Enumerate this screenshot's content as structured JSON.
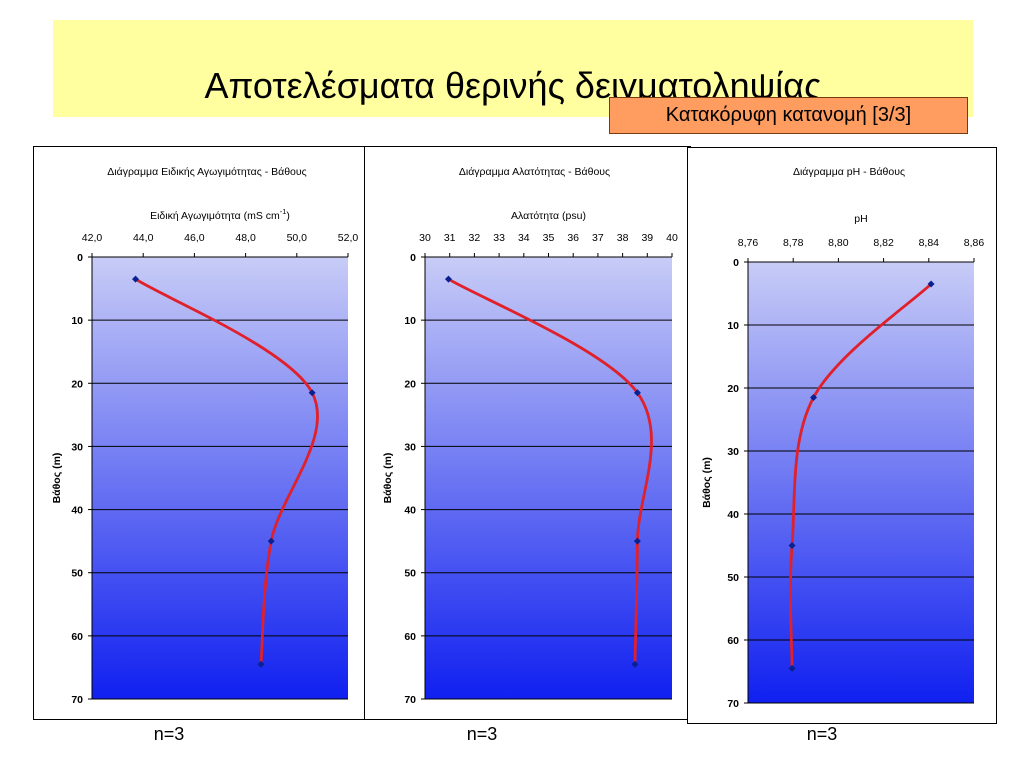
{
  "page": {
    "title": "Αποτελέσματα θερινής δειγματοληψίας",
    "subtitle": "Κατακόρυφη κατανομή [3/3]"
  },
  "colors": {
    "title_bg": "#ffffa0",
    "subtitle_bg": "#ff9c60",
    "plot_top": "#c8ccf6",
    "plot_bottom": "#1020f0",
    "line": "#e0202a",
    "marker": "#0a2090"
  },
  "chart_data": [
    {
      "type": "line",
      "title": "Διάγραμμα Ειδικής Αγωγιμότητας - Βάθους",
      "xlabel": "Ειδική Αγωγιμότητα (mS cm-1)",
      "ylabel": "Βάθος (m)",
      "x_ticks": [
        "42,0",
        "44,0",
        "46,0",
        "48,0",
        "50,0",
        "52,0"
      ],
      "x_tick_values": [
        42,
        44,
        46,
        48,
        50,
        52
      ],
      "y_ticks": [
        "0",
        "10",
        "20",
        "30",
        "40",
        "50",
        "60",
        "70"
      ],
      "y_tick_values": [
        0,
        10,
        20,
        30,
        40,
        50,
        60,
        70
      ],
      "xlim": [
        42,
        52
      ],
      "ylim": [
        0,
        70
      ],
      "x_axis_position": "top",
      "y_inverted": true,
      "grid": "horizontal",
      "points": [
        {
          "x": 43.7,
          "y": 3.5
        },
        {
          "x": 50.6,
          "y": 21.5
        },
        {
          "x": 49.0,
          "y": 45.0
        },
        {
          "x": 48.6,
          "y": 64.5
        }
      ],
      "n_label": "n=3"
    },
    {
      "type": "line",
      "title": "Διάγραμμα Αλατότητας - Βάθους",
      "xlabel": "Αλατότητα (psu)",
      "ylabel": "Βάθος (m)",
      "x_ticks": [
        "30",
        "31",
        "32",
        "33",
        "34",
        "35",
        "36",
        "37",
        "38",
        "39",
        "40"
      ],
      "x_tick_values": [
        30,
        31,
        32,
        33,
        34,
        35,
        36,
        37,
        38,
        39,
        40
      ],
      "y_ticks": [
        "0",
        "10",
        "20",
        "30",
        "40",
        "50",
        "60",
        "70"
      ],
      "y_tick_values": [
        0,
        10,
        20,
        30,
        40,
        50,
        60,
        70
      ],
      "xlim": [
        30,
        40
      ],
      "ylim": [
        0,
        70
      ],
      "x_axis_position": "top",
      "y_inverted": true,
      "grid": "horizontal",
      "points": [
        {
          "x": 30.95,
          "y": 3.5
        },
        {
          "x": 38.6,
          "y": 21.5
        },
        {
          "x": 38.6,
          "y": 45.0
        },
        {
          "x": 38.5,
          "y": 64.5
        }
      ],
      "n_label": "n=3"
    },
    {
      "type": "line",
      "title": "Διάγραμμα pH - Βάθους",
      "xlabel": "pH",
      "ylabel": "Βάθος (m)",
      "x_ticks": [
        "8,76",
        "8,78",
        "8,80",
        "8,82",
        "8,84",
        "8,86"
      ],
      "x_tick_values": [
        8.76,
        8.78,
        8.8,
        8.82,
        8.84,
        8.86
      ],
      "y_ticks": [
        "0",
        "10",
        "20",
        "30",
        "40",
        "50",
        "60",
        "70"
      ],
      "y_tick_values": [
        0,
        10,
        20,
        30,
        40,
        50,
        60,
        70
      ],
      "xlim": [
        8.76,
        8.86
      ],
      "ylim": [
        0,
        70
      ],
      "x_axis_position": "top",
      "y_inverted": true,
      "grid": "horizontal",
      "points": [
        {
          "x": 8.841,
          "y": 3.5
        },
        {
          "x": 8.789,
          "y": 21.5
        },
        {
          "x": 8.7795,
          "y": 45.0
        },
        {
          "x": 8.7795,
          "y": 64.5
        }
      ],
      "n_label": "n=3"
    }
  ]
}
